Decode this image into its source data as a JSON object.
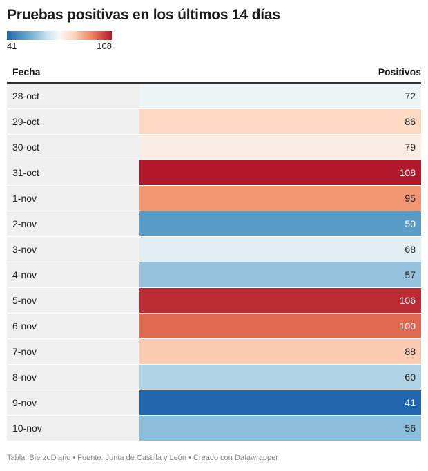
{
  "title": "Pruebas positivas en los últimos 14 días",
  "legend": {
    "min_label": "41",
    "max_label": "108"
  },
  "colors": {
    "scale": [
      "#2166ac",
      "#67a9cf",
      "#d1e5f0",
      "#f7f7f7",
      "#fddbc7",
      "#ef8a62",
      "#b2182b"
    ]
  },
  "chart_data": {
    "type": "table",
    "columns": [
      "Fecha",
      "Positivos"
    ],
    "min": 41,
    "max": 108,
    "rows": [
      {
        "date": "28-oct",
        "value": 72
      },
      {
        "date": "29-oct",
        "value": 86
      },
      {
        "date": "30-oct",
        "value": 79
      },
      {
        "date": "31-oct",
        "value": 108
      },
      {
        "date": "1-nov",
        "value": 95
      },
      {
        "date": "2-nov",
        "value": 50
      },
      {
        "date": "3-nov",
        "value": 68
      },
      {
        "date": "4-nov",
        "value": 57
      },
      {
        "date": "5-nov",
        "value": 106
      },
      {
        "date": "6-nov",
        "value": 100
      },
      {
        "date": "7-nov",
        "value": 88
      },
      {
        "date": "8-nov",
        "value": 60
      },
      {
        "date": "9-nov",
        "value": 41
      },
      {
        "date": "10-nov",
        "value": 56
      }
    ]
  },
  "footer": "Tabla: BierzoDiario • Fuente: Junta de Castilla y León • Creado con Datawrapper"
}
